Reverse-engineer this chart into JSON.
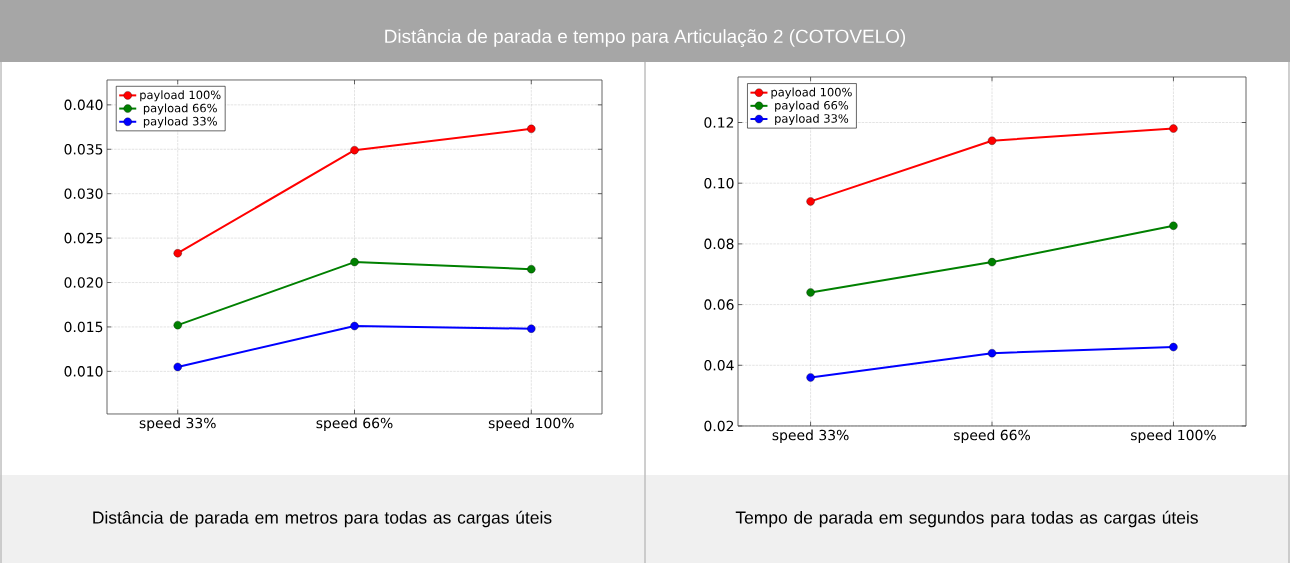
{
  "chart_data": [
    {
      "type": "line",
      "title": "Distância de parada e tempo para Articulação 2 (COTOVELO)",
      "xlabel": "Distância de parada em metros para todas as cargas úteis",
      "categories": [
        "speed 33%",
        "speed 66%",
        "speed 100%"
      ],
      "series": [
        {
          "name": "payload 100%",
          "color": "#ff0000",
          "values": [
            0.0233,
            0.0349,
            0.0373
          ]
        },
        {
          "name": "payload 66%",
          "color": "#008000",
          "values": [
            0.0152,
            0.0223,
            0.0215
          ]
        },
        {
          "name": "payload 33%",
          "color": "#0000ff",
          "values": [
            0.0105,
            0.0151,
            0.0148
          ]
        }
      ],
      "ylim": [
        0.0052,
        0.0428
      ],
      "yticks": [
        {
          "value": 0.01,
          "label": "0.010"
        },
        0.015,
        {
          "value": 0.02,
          "label": "0.020"
        },
        0.025,
        {
          "value": 0.03,
          "label": "0.030"
        },
        0.035,
        {
          "value": 0.04,
          "label": "0.040"
        }
      ],
      "grid": true,
      "legend": "top left",
      "marker": "circle"
    },
    {
      "type": "line",
      "xlabel": "Tempo de parada em segundos para todas as cargas úteis",
      "categories": [
        "speed 33%",
        "speed 66%",
        "speed 100%"
      ],
      "series": [
        {
          "name": "payload 100%",
          "color": "#ff0000",
          "values": [
            0.094,
            0.114,
            0.118
          ]
        },
        {
          "name": "payload 66%",
          "color": "#008000",
          "values": [
            0.064,
            0.074,
            0.086
          ]
        },
        {
          "name": "payload 33%",
          "color": "#0000ff",
          "values": [
            0.036,
            0.044,
            0.046
          ]
        }
      ],
      "ylim": [
        0.02,
        0.135
      ],
      "yticks": [
        0.02,
        0.04,
        0.06,
        0.08,
        {
          "value": 0.1,
          "label": "0.10"
        },
        0.12
      ],
      "grid": true,
      "legend": "top left",
      "marker": "circle"
    }
  ]
}
